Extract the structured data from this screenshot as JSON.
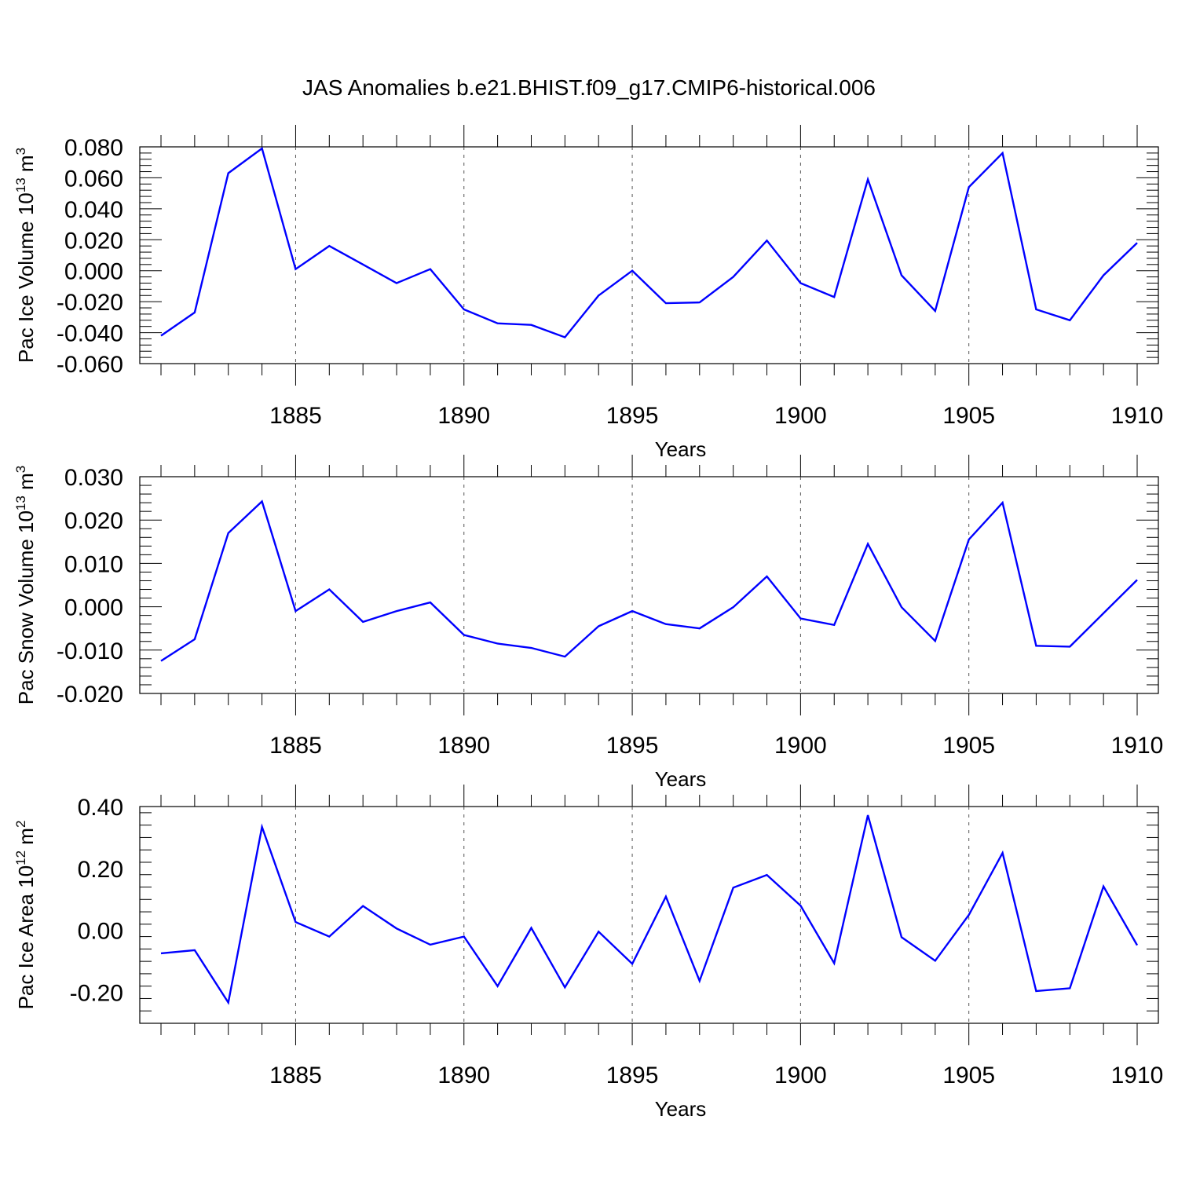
{
  "title": "JAS Anomalies b.e21.BHIST.f09_g17.CMIP6-historical.006",
  "colors": {
    "line": "#0000ff",
    "axis": "#000000",
    "grid": "#555555"
  },
  "chart_data": [
    {
      "type": "line",
      "ylabel": {
        "main": "Pac Ice Volume 10",
        "exp": "13",
        "unit": " m",
        "unit_exp": "3"
      },
      "xlabel": "Years",
      "xlim": [
        1880.6,
        1910
      ],
      "ylim": [
        -0.06,
        0.08
      ],
      "yticks": [
        -0.06,
        -0.04,
        -0.02,
        0.0,
        0.02,
        0.04,
        0.06,
        0.08
      ],
      "ytick_labels": [
        "-0.060",
        "-0.040",
        "-0.020",
        "0.000",
        "0.020",
        "0.040",
        "0.060",
        "0.080"
      ],
      "xticks": [
        1885,
        1890,
        1895,
        1900,
        1905,
        1910
      ],
      "xtick_labels": [
        "1885",
        "1890",
        "1895",
        "1900",
        "1905",
        "1910"
      ],
      "grid": "vertical dashed at labelled years",
      "series": [
        {
          "x": [
            1881,
            1882,
            1883,
            1884,
            1885,
            1886,
            1887,
            1888,
            1889,
            1890,
            1891,
            1892,
            1893,
            1894,
            1895,
            1896,
            1897,
            1898,
            1899,
            1900,
            1901,
            1902,
            1903,
            1904,
            1905,
            1906,
            1907,
            1908,
            1909,
            1910
          ],
          "values": [
            -0.042,
            -0.027,
            0.063,
            0.079,
            0.001,
            0.016,
            0.004,
            -0.008,
            0.001,
            -0.025,
            -0.034,
            -0.035,
            -0.043,
            -0.016,
            0.0,
            -0.021,
            -0.0205,
            -0.004,
            0.0195,
            -0.008,
            -0.017,
            0.059,
            -0.003,
            -0.026,
            0.054,
            0.076,
            -0.025,
            -0.032,
            -0.003,
            0.018
          ]
        }
      ]
    },
    {
      "type": "line",
      "ylabel": {
        "main": "Pac Snow Volume 10",
        "exp": "13",
        "unit": " m",
        "unit_exp": "3"
      },
      "xlabel": "Years",
      "xlim": [
        1880.6,
        1910
      ],
      "ylim": [
        -0.02,
        0.03
      ],
      "yticks": [
        -0.02,
        -0.01,
        0.0,
        0.01,
        0.02,
        0.03
      ],
      "ytick_labels": [
        "-0.020",
        "-0.010",
        "0.000",
        "0.010",
        "0.020",
        "0.030"
      ],
      "xticks": [
        1885,
        1890,
        1895,
        1900,
        1905,
        1910
      ],
      "xtick_labels": [
        "1885",
        "1890",
        "1895",
        "1900",
        "1905",
        "1910"
      ],
      "grid": "vertical dashed at labelled years",
      "series": [
        {
          "x": [
            1881,
            1882,
            1883,
            1884,
            1885,
            1886,
            1887,
            1888,
            1889,
            1890,
            1891,
            1892,
            1893,
            1894,
            1895,
            1896,
            1897,
            1898,
            1899,
            1900,
            1901,
            1902,
            1903,
            1904,
            1905,
            1906,
            1907,
            1908,
            1909,
            1910
          ],
          "values": [
            -0.0125,
            -0.0075,
            0.017,
            0.0243,
            -0.001,
            0.004,
            -0.0035,
            -0.001,
            0.001,
            -0.0065,
            -0.0085,
            -0.0095,
            -0.0115,
            -0.0045,
            -0.001,
            -0.004,
            -0.005,
            -0.0001,
            0.007,
            -0.0027,
            -0.0042,
            0.0145,
            -0.0001,
            -0.0079,
            0.0155,
            0.024,
            -0.009,
            -0.0092,
            -0.0015,
            0.0062
          ]
        }
      ]
    },
    {
      "type": "line",
      "ylabel": {
        "main": "Pac Ice Area 10",
        "exp": "12",
        "unit": " m",
        "unit_exp": "2"
      },
      "xlabel": "Years",
      "xlim": [
        1880.6,
        1910
      ],
      "ylim": [
        -0.3,
        0.4
      ],
      "yticks": [
        -0.2,
        0.0,
        0.2,
        0.4
      ],
      "ytick_labels": [
        "-0.20",
        "0.00",
        "0.20",
        "0.40"
      ],
      "xticks": [
        1885,
        1890,
        1895,
        1900,
        1905,
        1910
      ],
      "xtick_labels": [
        "1885",
        "1890",
        "1895",
        "1900",
        "1905",
        "1910"
      ],
      "grid": "vertical dashed at labelled years",
      "series": [
        {
          "x": [
            1881,
            1882,
            1883,
            1884,
            1885,
            1886,
            1887,
            1888,
            1889,
            1890,
            1891,
            1892,
            1893,
            1894,
            1895,
            1896,
            1897,
            1898,
            1899,
            1900,
            1901,
            1902,
            1903,
            1904,
            1905,
            1906,
            1907,
            1908,
            1909,
            1910
          ],
          "values": [
            -0.074,
            -0.064,
            -0.233,
            0.334,
            0.027,
            -0.02,
            0.079,
            0.006,
            -0.046,
            -0.02,
            -0.18,
            0.008,
            -0.184,
            -0.004,
            -0.108,
            0.109,
            -0.163,
            0.138,
            0.179,
            0.08,
            -0.106,
            0.372,
            -0.022,
            -0.098,
            0.05,
            0.25,
            -0.196,
            -0.187,
            0.142,
            -0.048
          ]
        }
      ]
    }
  ]
}
